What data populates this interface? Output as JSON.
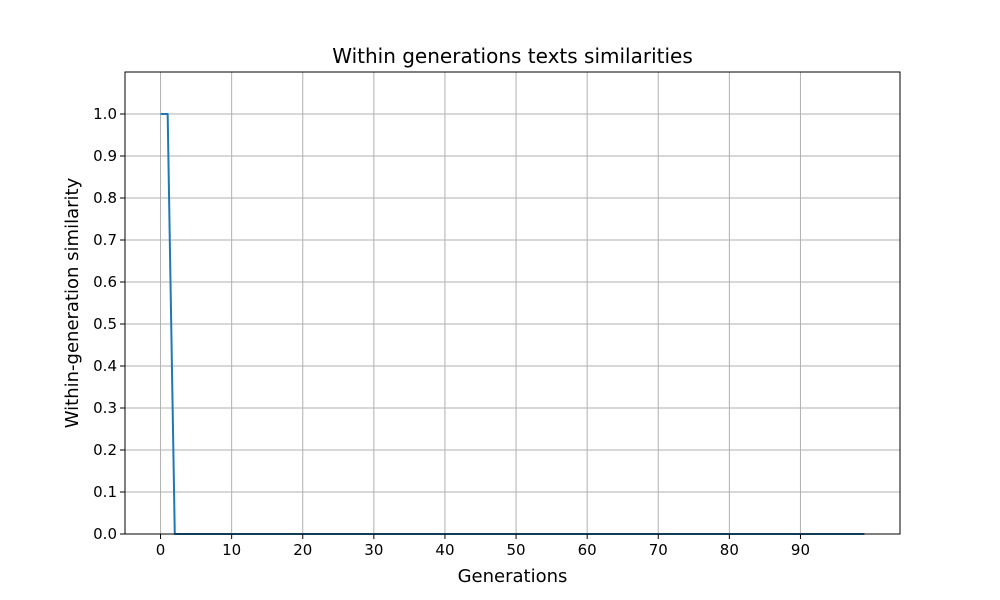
{
  "chart_data": {
    "type": "line",
    "title": "Within generations texts similarities",
    "xlabel": "Generations",
    "ylabel": "Within-generation similarity",
    "xlim": [
      -5,
      104
    ],
    "ylim": [
      0.0,
      1.1
    ],
    "xticks": [
      0,
      10,
      20,
      30,
      40,
      50,
      60,
      70,
      80,
      90
    ],
    "yticks": [
      0.0,
      0.1,
      0.2,
      0.3,
      0.4,
      0.5,
      0.6,
      0.7,
      0.8,
      0.9,
      1.0
    ],
    "grid": true,
    "series": [
      {
        "color": "#1f77b4",
        "x": [
          0,
          1,
          2,
          99
        ],
        "y": [
          1.0,
          1.0,
          0.0,
          0.0
        ]
      }
    ]
  }
}
